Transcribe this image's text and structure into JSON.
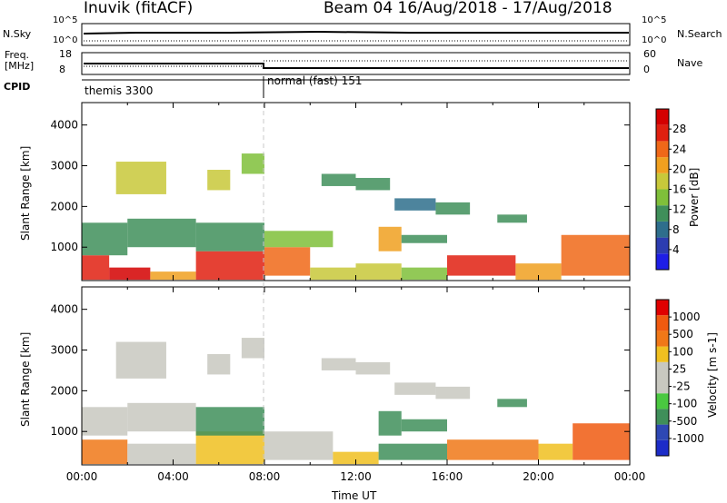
{
  "header": {
    "station": "Inuvik (fitACF)",
    "beam_dates": "Beam 04 16/Aug/2018 - 17/Aug/2018"
  },
  "nsky_panel": {
    "left_label": "N.Sky",
    "right_label": "N.Search",
    "left_ticks": [
      "10^5",
      "10^0"
    ],
    "right_ticks": [
      "10^5",
      "10^0"
    ]
  },
  "freq_panel": {
    "left_label_1": "Freq.",
    "left_label_2": "[MHz]",
    "right_label": "Nave",
    "left_ticks": [
      "18",
      "8"
    ],
    "right_ticks": [
      "60",
      "0"
    ]
  },
  "cpid_panel": {
    "label": "CPID",
    "modes": [
      {
        "name": "themis 3300",
        "start_hour": 0
      },
      {
        "name": "normal (fast) 151",
        "start_hour": 8
      }
    ]
  },
  "chart_data": [
    {
      "type": "heatmap",
      "name": "power",
      "xlabel": "",
      "ylabel": "Slant Range [km]",
      "xlim": [
        0,
        24
      ],
      "ylim": [
        180,
        4550
      ],
      "y_ticks": [
        "1000",
        "2000",
        "3000",
        "4000"
      ],
      "colorbar_label": "Power [dB]",
      "colorbar_ticks": [
        "28",
        "24",
        "20",
        "16",
        "12",
        "8",
        "4"
      ],
      "colorbar_colors": [
        "#1e1ee6",
        "#2c3cb0",
        "#2e6e8c",
        "#3f8f5a",
        "#7fbf3a",
        "#c8c83a",
        "#f0a020",
        "#f06818",
        "#e02010",
        "#d40000"
      ],
      "cells": [
        [
          0.0,
          1.2,
          200,
          800,
          8
        ],
        [
          1.2,
          3.0,
          200,
          500,
          9
        ],
        [
          3.0,
          5.0,
          200,
          400,
          6
        ],
        [
          5.0,
          8.0,
          200,
          900,
          8
        ],
        [
          8.0,
          10.0,
          300,
          1000,
          7
        ],
        [
          10.0,
          12.0,
          200,
          500,
          5
        ],
        [
          12.0,
          14.0,
          200,
          600,
          5
        ],
        [
          14.0,
          16.0,
          200,
          500,
          4
        ],
        [
          16.0,
          19.0,
          300,
          800,
          8
        ],
        [
          19.0,
          21.0,
          200,
          600,
          6
        ],
        [
          21.0,
          24.0,
          300,
          1300,
          7
        ],
        [
          0.0,
          2.0,
          800,
          1600,
          3
        ],
        [
          2.0,
          5.0,
          1000,
          1700,
          3
        ],
        [
          5.0,
          8.0,
          900,
          1600,
          3
        ],
        [
          8.0,
          11.0,
          1000,
          1400,
          4
        ],
        [
          13.0,
          14.0,
          900,
          1500,
          6
        ],
        [
          14.0,
          16.0,
          1100,
          1300,
          3
        ],
        [
          1.5,
          3.7,
          2300,
          3100,
          5
        ],
        [
          5.5,
          6.5,
          2400,
          2900,
          5
        ],
        [
          7.0,
          8.0,
          2800,
          3300,
          4
        ],
        [
          13.7,
          15.5,
          1900,
          2200,
          2
        ],
        [
          15.5,
          17.0,
          1800,
          2100,
          3
        ],
        [
          18.2,
          19.5,
          1600,
          1800,
          3
        ],
        [
          10.5,
          12.0,
          2500,
          2800,
          3
        ],
        [
          12.0,
          13.5,
          2400,
          2700,
          3
        ]
      ]
    },
    {
      "type": "heatmap",
      "name": "velocity",
      "xlabel": "Time UT",
      "ylabel": "Slant Range [km]",
      "xlim": [
        0,
        24
      ],
      "ylim": [
        180,
        4550
      ],
      "x_ticks": [
        "00:00",
        "04:00",
        "08:00",
        "12:00",
        "16:00",
        "20:00",
        "00:00"
      ],
      "y_ticks": [
        "1000",
        "2000",
        "3000",
        "4000"
      ],
      "colorbar_label": "Velocity [m s-1]",
      "colorbar_ticks": [
        "1000",
        "500",
        "100",
        "25",
        "-25",
        "-100",
        "-500",
        "-1000"
      ],
      "colorbar_colors": [
        "#1c2cc8",
        "#2e48b4",
        "#3f8f5a",
        "#4ac840",
        "#c8c8c0",
        "#c8c8c0",
        "#f0c020",
        "#f07818",
        "#f05a10",
        "#e00000"
      ],
      "cells": [
        [
          0.0,
          2.0,
          200,
          800,
          7
        ],
        [
          2.0,
          5.0,
          200,
          700,
          5
        ],
        [
          5.0,
          8.0,
          200,
          1000,
          6
        ],
        [
          8.0,
          11.0,
          300,
          1000,
          4
        ],
        [
          11.0,
          13.0,
          200,
          500,
          6
        ],
        [
          13.0,
          16.0,
          300,
          700,
          2
        ],
        [
          16.0,
          20.0,
          300,
          800,
          7
        ],
        [
          20.0,
          21.5,
          300,
          700,
          6
        ],
        [
          21.5,
          24.0,
          300,
          1200,
          8
        ],
        [
          0.0,
          2.0,
          900,
          1600,
          4
        ],
        [
          2.0,
          5.0,
          1000,
          1700,
          4
        ],
        [
          5.0,
          8.0,
          900,
          1600,
          2
        ],
        [
          13.0,
          14.0,
          900,
          1500,
          2
        ],
        [
          14.0,
          16.0,
          1000,
          1300,
          2
        ],
        [
          1.5,
          3.7,
          2300,
          3200,
          4
        ],
        [
          5.5,
          6.5,
          2400,
          2900,
          4
        ],
        [
          7.0,
          8.0,
          2800,
          3300,
          4
        ],
        [
          13.7,
          15.5,
          1900,
          2200,
          4
        ],
        [
          15.5,
          17.0,
          1800,
          2100,
          4
        ],
        [
          18.2,
          19.5,
          1600,
          1800,
          2
        ],
        [
          10.5,
          12.0,
          2500,
          2800,
          4
        ],
        [
          12.0,
          13.5,
          2400,
          2700,
          4
        ]
      ]
    }
  ]
}
